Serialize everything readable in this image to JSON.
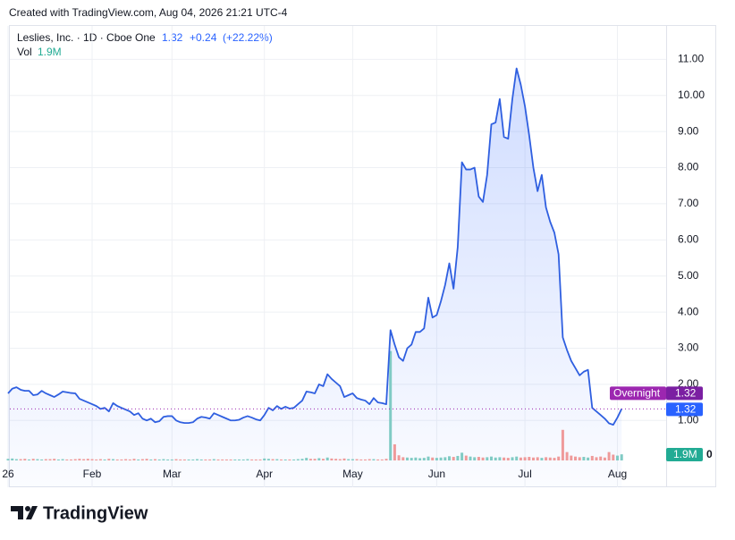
{
  "header": {
    "credit": "Created with TradingView.com, Aug 04, 2026 21:21 UTC-4"
  },
  "footer": {
    "brand": "TradingView"
  },
  "chart_data": {
    "type": "line",
    "title": "Leslies, Inc. · 1D · Cboe One",
    "legend_values": {
      "last": "1.32",
      "change": "+0.24",
      "change_pct": "(+22.22%)"
    },
    "price_labels": {
      "overnight": "Overnight",
      "overnight_price": "1.32",
      "last_price": "1.32",
      "volume": "1.9M"
    },
    "categories": [
      "26",
      null,
      null,
      null,
      null,
      null,
      null,
      null,
      null,
      null,
      null,
      null,
      null,
      null,
      null,
      null,
      null,
      null,
      null,
      null,
      "Feb",
      null,
      null,
      null,
      null,
      null,
      null,
      null,
      null,
      null,
      null,
      null,
      null,
      null,
      null,
      null,
      null,
      null,
      null,
      "Mar",
      null,
      null,
      null,
      null,
      null,
      null,
      null,
      null,
      null,
      null,
      null,
      null,
      null,
      null,
      null,
      null,
      null,
      null,
      null,
      null,
      null,
      "Apr",
      null,
      null,
      null,
      null,
      null,
      null,
      null,
      null,
      null,
      null,
      null,
      null,
      null,
      null,
      null,
      null,
      null,
      null,
      null,
      null,
      "May",
      null,
      null,
      null,
      null,
      null,
      null,
      null,
      null,
      null,
      null,
      null,
      null,
      null,
      null,
      null,
      null,
      null,
      null,
      null,
      "Jun",
      null,
      null,
      null,
      null,
      null,
      null,
      null,
      null,
      null,
      null,
      null,
      null,
      null,
      null,
      null,
      null,
      null,
      null,
      null,
      null,
      "Jul",
      null,
      null,
      null,
      null,
      null,
      null,
      null,
      null,
      null,
      null,
      null,
      null,
      null,
      null,
      null,
      null,
      null,
      null,
      null,
      null,
      null,
      "Aug",
      null
    ],
    "series": [
      {
        "name": "Leslies, Inc.",
        "color": "#2f5fe0",
        "fill": "#2962ff",
        "values": [
          1.75,
          1.88,
          1.92,
          1.85,
          1.82,
          1.82,
          1.7,
          1.72,
          1.82,
          1.75,
          1.7,
          1.65,
          1.72,
          1.8,
          1.78,
          1.76,
          1.75,
          1.6,
          1.55,
          1.5,
          1.45,
          1.4,
          1.32,
          1.35,
          1.25,
          1.48,
          1.4,
          1.35,
          1.3,
          1.25,
          1.15,
          1.2,
          1.05,
          1.0,
          1.05,
          0.95,
          0.98,
          1.1,
          1.12,
          1.12,
          1.0,
          0.95,
          0.93,
          0.93,
          0.95,
          1.05,
          1.1,
          1.08,
          1.05,
          1.2,
          1.15,
          1.1,
          1.05,
          1.0,
          1.0,
          1.02,
          1.08,
          1.12,
          1.08,
          1.03,
          1.0,
          1.15,
          1.35,
          1.28,
          1.4,
          1.32,
          1.38,
          1.33,
          1.35,
          1.45,
          1.55,
          1.8,
          1.78,
          1.75,
          2.0,
          1.95,
          2.28,
          2.15,
          2.05,
          1.95,
          1.65,
          1.7,
          1.75,
          1.62,
          1.58,
          1.55,
          1.45,
          1.62,
          1.5,
          1.48,
          1.45,
          3.5,
          3.1,
          2.75,
          2.65,
          3.0,
          3.1,
          3.45,
          3.45,
          3.55,
          4.4,
          3.85,
          3.92,
          4.3,
          4.75,
          5.35,
          4.65,
          5.8,
          8.15,
          7.95,
          7.95,
          8.0,
          7.2,
          7.05,
          7.8,
          9.2,
          9.25,
          9.9,
          8.85,
          8.8,
          9.9,
          10.75,
          10.3,
          9.7,
          8.9,
          8.0,
          7.35,
          7.8,
          6.9,
          6.5,
          6.2,
          5.6,
          3.3,
          2.95,
          2.65,
          2.45,
          2.25,
          2.35,
          2.4,
          1.35,
          1.25,
          1.15,
          1.05,
          0.92,
          0.88,
          1.08,
          1.32
        ]
      },
      {
        "name": "Vol",
        "type": "bar",
        "axis": "y2",
        "up_color": "#80cbc4",
        "down_color": "#ef9a9a",
        "values": [
          0.5,
          0.6,
          0.4,
          0.4,
          0.5,
          0.3,
          0.5,
          0.4,
          0.3,
          0.4,
          0.4,
          0.5,
          0.3,
          0.4,
          0.3,
          0.3,
          0.4,
          0.5,
          0.4,
          0.5,
          0.4,
          0.3,
          0.4,
          0.3,
          0.5,
          0.4,
          0.3,
          0.3,
          0.4,
          0.3,
          0.5,
          0.3,
          0.4,
          0.5,
          0.3,
          0.4,
          0.3,
          0.4,
          0.3,
          0.3,
          0.4,
          0.3,
          0.3,
          0.3,
          0.3,
          0.4,
          0.3,
          0.3,
          0.3,
          0.4,
          0.3,
          0.3,
          0.3,
          0.3,
          0.3,
          0.3,
          0.3,
          0.4,
          0.3,
          0.3,
          0.3,
          0.6,
          0.5,
          0.4,
          0.4,
          0.3,
          0.3,
          0.3,
          0.3,
          0.4,
          0.5,
          0.8,
          0.5,
          0.5,
          0.7,
          0.5,
          0.9,
          0.6,
          0.5,
          0.4,
          0.6,
          0.4,
          0.4,
          0.4,
          0.3,
          0.3,
          0.4,
          0.4,
          0.3,
          0.3,
          0.5,
          34,
          5.0,
          1.6,
          1.0,
          0.9,
          0.8,
          0.9,
          0.7,
          0.8,
          1.2,
          0.9,
          0.8,
          0.9,
          1.0,
          1.3,
          1.1,
          1.4,
          2.4,
          1.5,
          1.2,
          1.0,
          1.1,
          0.9,
          1.0,
          1.2,
          0.9,
          1.0,
          0.9,
          0.8,
          1.0,
          1.2,
          0.9,
          1.0,
          1.1,
          0.9,
          1.0,
          0.8,
          1.0,
          0.9,
          0.8,
          1.2,
          9.5,
          2.6,
          1.5,
          1.2,
          1.0,
          1.1,
          0.9,
          1.4,
          1.0,
          1.2,
          0.9,
          2.6,
          1.8,
          1.5,
          1.9
        ]
      }
    ],
    "ylim": [
      -0.85,
      11.95
    ],
    "yticks": [
      {
        "value": 1,
        "label": "1.00"
      },
      {
        "value": 2,
        "label": "2.00"
      },
      {
        "value": 3,
        "label": "3.00"
      },
      {
        "value": 4,
        "label": "4.00"
      },
      {
        "value": 5,
        "label": "5.00"
      },
      {
        "value": 6,
        "label": "6.00"
      },
      {
        "value": 7,
        "label": "7.00"
      },
      {
        "value": 8,
        "label": "8.00"
      },
      {
        "value": 9,
        "label": "9.00"
      },
      {
        "value": 10,
        "label": "10.00"
      },
      {
        "value": 11,
        "label": "11.00"
      }
    ],
    "y2lim": [
      0,
      40
    ],
    "y2ticks": [
      0
    ],
    "grid": true
  }
}
